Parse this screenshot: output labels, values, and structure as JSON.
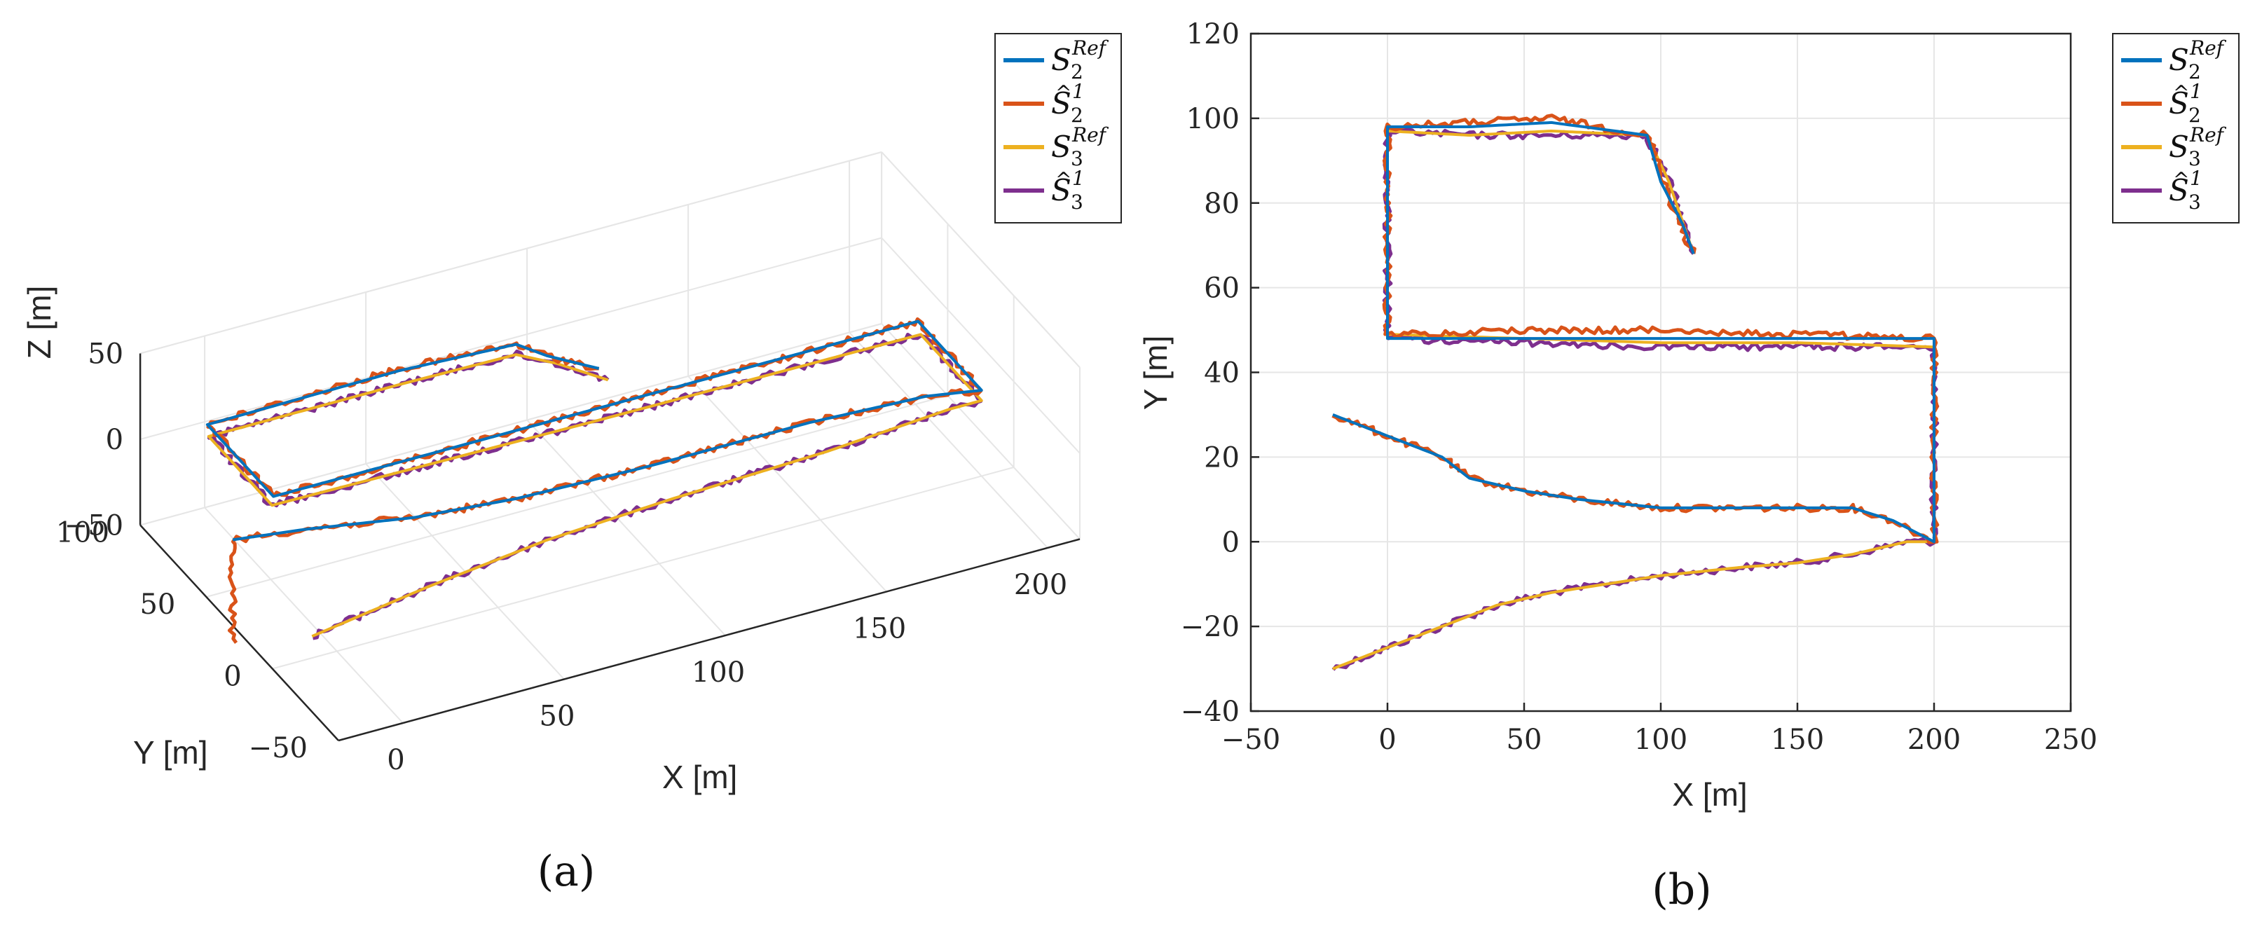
{
  "chart_data": [
    {
      "type": "line3d",
      "panel_label": "(a)",
      "xlabel": "X [m]",
      "ylabel": "Y [m]",
      "zlabel": "Z [m]",
      "x_ticks": [
        "0",
        "50",
        "100",
        "150",
        "200"
      ],
      "y_ticks": [
        "−50",
        "0",
        "50",
        "100"
      ],
      "z_ticks": [
        "−50",
        "0",
        "50"
      ],
      "xlim": [
        -20,
        210
      ],
      "ylim": [
        -50,
        100
      ],
      "zlim": [
        -50,
        50
      ],
      "grid": true,
      "legend_position": "top-right outside",
      "legend": [
        {
          "key": "S2ref",
          "base": "S",
          "hat": false,
          "sub": "2",
          "sup": "Ref",
          "color": "#0072BD"
        },
        {
          "key": "S2hat",
          "base": "S",
          "hat": true,
          "sub": "2",
          "sup": "1",
          "color": "#D95319"
        },
        {
          "key": "S3ref",
          "base": "S",
          "hat": false,
          "sub": "3",
          "sup": "Ref",
          "color": "#EDB120"
        },
        {
          "key": "S3hat",
          "base": "S",
          "hat": true,
          "sub": "3",
          "sup": "1",
          "color": "#7E2F8E"
        }
      ],
      "series": [
        {
          "key": "S2ref",
          "name": "S_2^Ref",
          "color": "#0072BD",
          "points": [
            [
              -20,
              30,
              0
            ],
            [
              0,
              25,
              0
            ],
            [
              30,
              15,
              0
            ],
            [
              60,
              10,
              0
            ],
            [
              100,
              8,
              0
            ],
            [
              150,
              8,
              0
            ],
            [
              185,
              5,
              0
            ],
            [
              200,
              0,
              0
            ],
            [
              200,
              48,
              0
            ],
            [
              100,
              48,
              0
            ],
            [
              0,
              48,
              0
            ],
            [
              0,
              98,
              0
            ],
            [
              60,
              99,
              0
            ],
            [
              95,
              96,
              0
            ],
            [
              100,
              85,
              0
            ],
            [
              110,
              70,
              0
            ]
          ]
        },
        {
          "key": "S2hat",
          "name": "Ŝ_2^1",
          "color": "#D95319",
          "points": [
            [
              -20,
              30,
              -60
            ],
            [
              -20,
              30,
              0
            ],
            [
              0,
              25,
              0
            ],
            [
              30,
              15,
              0
            ],
            [
              60,
              10,
              0
            ],
            [
              100,
              8,
              0
            ],
            [
              150,
              8,
              0
            ],
            [
              185,
              5,
              0
            ],
            [
              200,
              0,
              0
            ],
            [
              200,
              48,
              0
            ],
            [
              100,
              48,
              0
            ],
            [
              0,
              48,
              0
            ],
            [
              0,
              98,
              0
            ],
            [
              60,
              100,
              0
            ],
            [
              95,
              96,
              0
            ],
            [
              100,
              85,
              0
            ],
            [
              110,
              70,
              0
            ]
          ]
        },
        {
          "key": "S3ref",
          "name": "S_3^Ref",
          "color": "#EDB120",
          "points": [
            [
              -20,
              -30,
              0
            ],
            [
              20,
              -20,
              0
            ],
            [
              60,
              -12,
              0
            ],
            [
              100,
              -8,
              0
            ],
            [
              150,
              -5,
              0
            ],
            [
              190,
              0,
              0
            ],
            [
              200,
              0,
              0
            ],
            [
              200,
              46,
              0
            ],
            [
              100,
              47,
              0
            ],
            [
              0,
              49,
              0
            ],
            [
              0,
              97,
              0
            ],
            [
              60,
              97,
              0
            ],
            [
              95,
              96,
              0
            ],
            [
              103,
              85,
              0
            ],
            [
              112,
              68,
              0
            ]
          ]
        },
        {
          "key": "S3hat",
          "name": "Ŝ_3^1",
          "color": "#7E2F8E",
          "points": [
            [
              -20,
              -30,
              0
            ],
            [
              20,
              -20,
              0
            ],
            [
              60,
              -12,
              0
            ],
            [
              100,
              -8,
              0
            ],
            [
              150,
              -5,
              0
            ],
            [
              190,
              0,
              0
            ],
            [
              200,
              0,
              0
            ],
            [
              200,
              46,
              0
            ],
            [
              100,
              47,
              0
            ],
            [
              0,
              49,
              0
            ],
            [
              0,
              97,
              0
            ],
            [
              60,
              97,
              0
            ],
            [
              95,
              96,
              0
            ],
            [
              103,
              85,
              0
            ],
            [
              112,
              68,
              0
            ]
          ]
        }
      ]
    },
    {
      "type": "line",
      "panel_label": "(b)",
      "xlabel": "X [m]",
      "ylabel": "Y [m]",
      "x_ticks": [
        "−50",
        "0",
        "50",
        "100",
        "150",
        "200",
        "250"
      ],
      "y_ticks": [
        "−40",
        "−20",
        "0",
        "20",
        "40",
        "60",
        "80",
        "100",
        "120"
      ],
      "xlim": [
        -50,
        250
      ],
      "ylim": [
        -40,
        120
      ],
      "grid": true,
      "legend_position": "top-right outside",
      "legend": [
        {
          "key": "S2ref",
          "base": "S",
          "hat": false,
          "sub": "2",
          "sup": "Ref",
          "color": "#0072BD"
        },
        {
          "key": "S2hat",
          "base": "S",
          "hat": true,
          "sub": "2",
          "sup": "1",
          "color": "#D95319"
        },
        {
          "key": "S3ref",
          "base": "S",
          "hat": false,
          "sub": "3",
          "sup": "Ref",
          "color": "#EDB120"
        },
        {
          "key": "S3hat",
          "base": "S",
          "hat": true,
          "sub": "3",
          "sup": "1",
          "color": "#7E2F8E"
        }
      ],
      "series": [
        {
          "key": "S2ref",
          "name": "S_2^Ref",
          "color": "#0072BD",
          "points": [
            [
              -20,
              30
            ],
            [
              0,
              25
            ],
            [
              20,
              20
            ],
            [
              30,
              15
            ],
            [
              50,
              12
            ],
            [
              70,
              10
            ],
            [
              100,
              8
            ],
            [
              120,
              8
            ],
            [
              150,
              8
            ],
            [
              170,
              8
            ],
            [
              185,
              5
            ],
            [
              200,
              0
            ],
            [
              200,
              48
            ],
            [
              150,
              48
            ],
            [
              100,
              48
            ],
            [
              50,
              48
            ],
            [
              0,
              48
            ],
            [
              0,
              98
            ],
            [
              30,
              98
            ],
            [
              60,
              99
            ],
            [
              95,
              96
            ],
            [
              100,
              85
            ],
            [
              108,
              75
            ],
            [
              112,
              68
            ]
          ]
        },
        {
          "key": "S2hat",
          "name": "Ŝ_2^1",
          "color": "#D95319",
          "points": [
            [
              -20,
              30
            ],
            [
              0,
              25
            ],
            [
              20,
              20
            ],
            [
              30,
              15
            ],
            [
              50,
              12
            ],
            [
              70,
              10
            ],
            [
              100,
              8
            ],
            [
              120,
              8
            ],
            [
              150,
              8
            ],
            [
              170,
              8
            ],
            [
              185,
              5
            ],
            [
              200,
              0
            ],
            [
              200,
              48
            ],
            [
              150,
              49
            ],
            [
              100,
              50
            ],
            [
              50,
              50
            ],
            [
              0,
              49
            ],
            [
              0,
              98
            ],
            [
              30,
              99
            ],
            [
              60,
              100
            ],
            [
              95,
              96
            ],
            [
              100,
              88
            ],
            [
              105,
              78
            ],
            [
              112,
              68
            ]
          ]
        },
        {
          "key": "S3ref",
          "name": "S_3^Ref",
          "color": "#EDB120",
          "points": [
            [
              -20,
              -30
            ],
            [
              0,
              -25
            ],
            [
              20,
              -20
            ],
            [
              40,
              -15
            ],
            [
              60,
              -12
            ],
            [
              80,
              -10
            ],
            [
              100,
              -8
            ],
            [
              130,
              -6
            ],
            [
              150,
              -5
            ],
            [
              170,
              -3
            ],
            [
              190,
              0
            ],
            [
              200,
              0
            ],
            [
              200,
              46
            ],
            [
              150,
              47
            ],
            [
              100,
              47
            ],
            [
              50,
              48
            ],
            [
              0,
              49
            ],
            [
              0,
              97
            ],
            [
              30,
              96
            ],
            [
              60,
              97
            ],
            [
              95,
              96
            ],
            [
              103,
              85
            ],
            [
              112,
              68
            ]
          ]
        },
        {
          "key": "S3hat",
          "name": "Ŝ_3^1",
          "color": "#7E2F8E",
          "points": [
            [
              -20,
              -30
            ],
            [
              0,
              -25
            ],
            [
              20,
              -20
            ],
            [
              40,
              -15
            ],
            [
              60,
              -12
            ],
            [
              80,
              -10
            ],
            [
              100,
              -8
            ],
            [
              130,
              -6
            ],
            [
              150,
              -5
            ],
            [
              170,
              -3
            ],
            [
              190,
              0
            ],
            [
              200,
              0
            ],
            [
              200,
              46
            ],
            [
              150,
              46
            ],
            [
              100,
              46
            ],
            [
              50,
              47
            ],
            [
              0,
              48
            ],
            [
              0,
              97
            ],
            [
              30,
              96
            ],
            [
              60,
              96
            ],
            [
              95,
              96
            ],
            [
              103,
              85
            ],
            [
              112,
              68
            ]
          ]
        }
      ]
    }
  ]
}
